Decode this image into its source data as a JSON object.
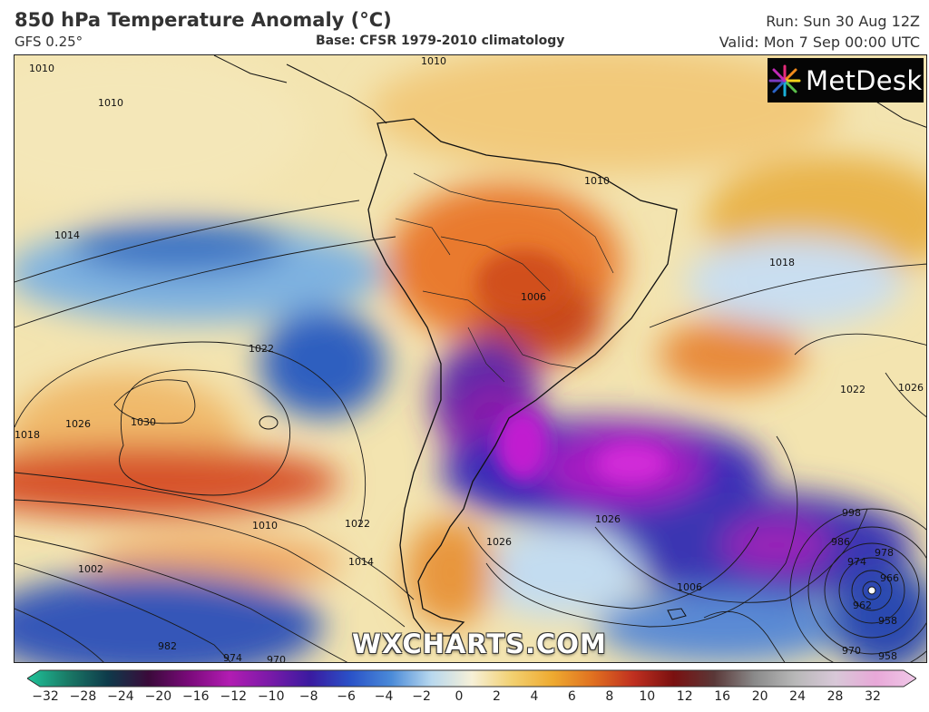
{
  "header": {
    "title": "850 hPa Temperature Anomaly (°C)",
    "model": "GFS 0.25°",
    "base": "Base: CFSR 1979-2010 climatology",
    "run": "Run: Sun 30 Aug 12Z",
    "valid": "Valid: Mon 7 Sep 00:00 UTC"
  },
  "logo": {
    "text": "MetDesk",
    "icon": "metdesk-star-icon"
  },
  "watermark": "WXCHARTS.COM",
  "colorbar": {
    "ticks": [
      "−32",
      "−28",
      "−24",
      "−20",
      "−16",
      "−12",
      "−10",
      "−8",
      "−6",
      "−4",
      "−2",
      "0",
      "2",
      "4",
      "6",
      "8",
      "10",
      "12",
      "16",
      "20",
      "24",
      "28",
      "32"
    ],
    "colors": [
      "#1fc49a",
      "#1a7a66",
      "#0e3a4a",
      "#3a0a3a",
      "#7a0a7a",
      "#b21cb2",
      "#7a1aa8",
      "#3a1aa0",
      "#2a52c8",
      "#4a8ad8",
      "#b8d8ee",
      "#f6f0d8",
      "#f2d070",
      "#eeaa30",
      "#e07020",
      "#c03020",
      "#7a1010",
      "#5a3838",
      "#8a8a8a",
      "#b8b8b8",
      "#d8c8d8",
      "#e8a8d8",
      "#f0c8e8"
    ]
  },
  "isobars": [
    "1010",
    "1010",
    "1010",
    "1014",
    "1018",
    "1022",
    "1026",
    "1030",
    "1026",
    "1018",
    "1006",
    "1010",
    "1014",
    "1022",
    "1026",
    "1022",
    "1026",
    "1006",
    "1002",
    "998",
    "986",
    "978",
    "974",
    "966",
    "962",
    "958",
    "958",
    "970",
    "974",
    "970",
    "982",
    "1010"
  ]
}
